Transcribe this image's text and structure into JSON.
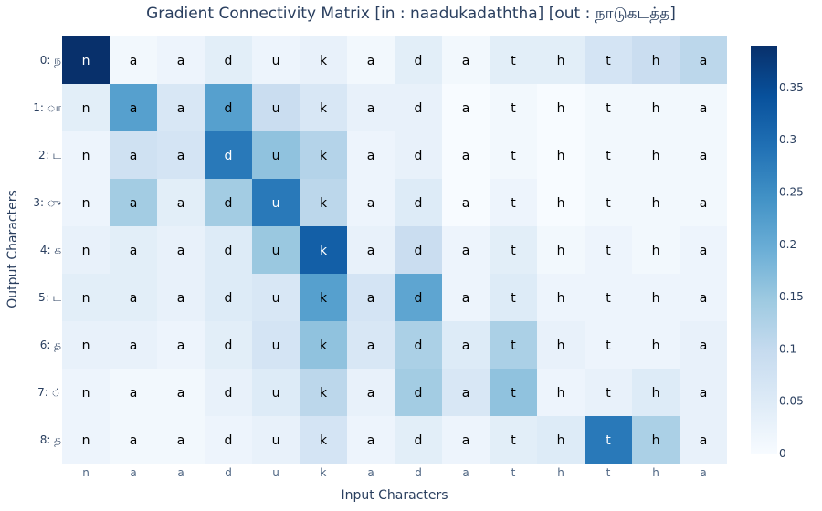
{
  "chart_data": {
    "type": "heatmap",
    "title": "Gradient Connectivity Matrix [in : naadukadaththa] [out : நாடுகடத்த]",
    "xlabel": "Input Characters",
    "ylabel": "Output Characters",
    "x_categories": [
      "n",
      "a",
      "a",
      "d",
      "u",
      "k",
      "a",
      "d",
      "a",
      "t",
      "h",
      "t",
      "h",
      "a"
    ],
    "y_categories": [
      "0: ந",
      "1: ா",
      "2: ட",
      "3: ு",
      "4: க",
      "5: ட",
      "6: த",
      "7: ்",
      "8: த"
    ],
    "colorscale": "Blues",
    "zmin": 0,
    "zmax": 0.39,
    "colorbar_ticks": [
      0,
      0.05,
      0.1,
      0.15,
      0.2,
      0.25,
      0.3,
      0.35
    ],
    "colorbar_ticktext": [
      "0",
      "0.05",
      "0.1",
      "0.15",
      "0.2",
      "0.25",
      "0.3",
      "0.35"
    ],
    "z": [
      [
        0.39,
        0.01,
        0.02,
        0.04,
        0.02,
        0.03,
        0.01,
        0.04,
        0.01,
        0.04,
        0.04,
        0.07,
        0.09,
        0.11
      ],
      [
        0.04,
        0.22,
        0.06,
        0.22,
        0.09,
        0.06,
        0.03,
        0.03,
        0.0,
        0.01,
        0.0,
        0.01,
        0.01,
        0.01
      ],
      [
        0.02,
        0.08,
        0.07,
        0.28,
        0.16,
        0.12,
        0.02,
        0.03,
        0.0,
        0.01,
        0.0,
        0.01,
        0.01,
        0.01
      ],
      [
        0.02,
        0.14,
        0.04,
        0.14,
        0.28,
        0.11,
        0.02,
        0.05,
        0.0,
        0.02,
        0.0,
        0.01,
        0.01,
        0.01
      ],
      [
        0.03,
        0.04,
        0.03,
        0.05,
        0.15,
        0.32,
        0.03,
        0.09,
        0.02,
        0.04,
        0.01,
        0.02,
        0.01,
        0.02
      ],
      [
        0.04,
        0.04,
        0.03,
        0.05,
        0.06,
        0.22,
        0.07,
        0.21,
        0.02,
        0.05,
        0.02,
        0.02,
        0.02,
        0.02
      ],
      [
        0.03,
        0.03,
        0.02,
        0.04,
        0.07,
        0.16,
        0.06,
        0.13,
        0.05,
        0.13,
        0.03,
        0.02,
        0.02,
        0.03
      ],
      [
        0.02,
        0.01,
        0.01,
        0.03,
        0.05,
        0.11,
        0.03,
        0.14,
        0.06,
        0.16,
        0.02,
        0.03,
        0.05,
        0.03
      ],
      [
        0.02,
        0.01,
        0.01,
        0.02,
        0.03,
        0.07,
        0.02,
        0.04,
        0.02,
        0.04,
        0.05,
        0.28,
        0.13,
        0.03
      ]
    ]
  }
}
